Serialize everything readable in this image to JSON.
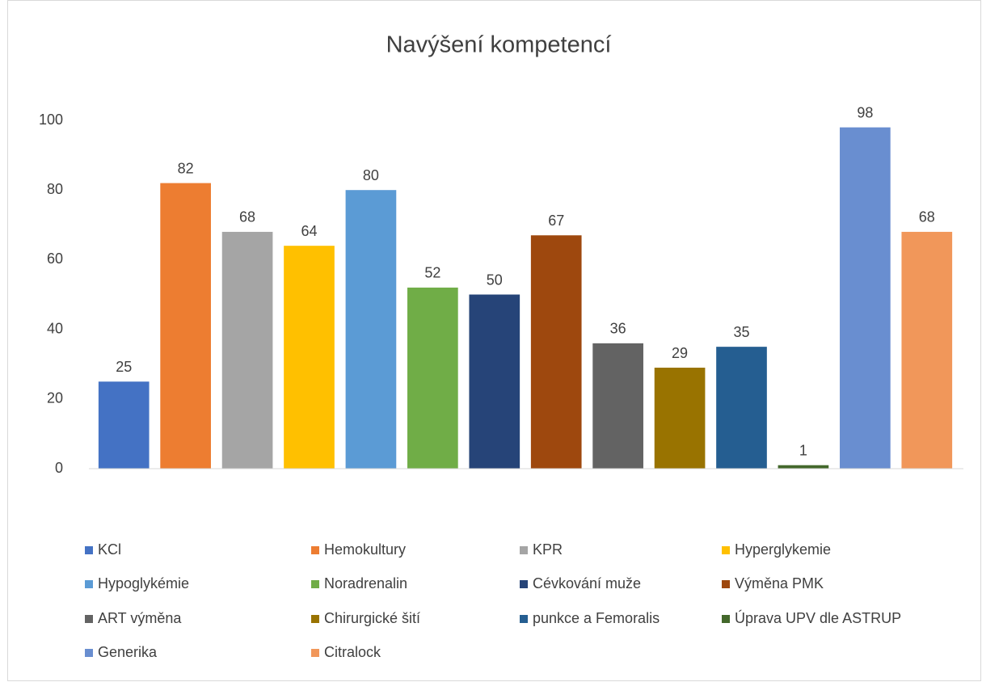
{
  "chart_data": {
    "type": "bar",
    "title": "Navýšení kompetencí",
    "categories": [
      null
    ],
    "series": [
      {
        "name": "KCl",
        "color": "#4472c4",
        "values": [
          25
        ]
      },
      {
        "name": "Hemokultury",
        "color": "#ed7d31",
        "values": [
          82
        ]
      },
      {
        "name": "KPR",
        "color": "#a5a5a5",
        "values": [
          68
        ]
      },
      {
        "name": "Hyperglykemie",
        "color": "#ffc000",
        "values": [
          64
        ]
      },
      {
        "name": "Hypoglykémie",
        "color": "#5b9bd5",
        "values": [
          80
        ]
      },
      {
        "name": "Noradrenalin",
        "color": "#70ad47",
        "values": [
          52
        ]
      },
      {
        "name": "Cévkování muže",
        "color": "#264478",
        "values": [
          50
        ]
      },
      {
        "name": "Výměna PMK",
        "color": "#9e480e",
        "values": [
          67
        ]
      },
      {
        "name": "ART výměna",
        "color": "#636363",
        "values": [
          36
        ]
      },
      {
        "name": "Chirurgické šití",
        "color": "#997300",
        "values": [
          29
        ]
      },
      {
        "name": "punkce a Femoralis",
        "color": "#255e91",
        "values": [
          35
        ]
      },
      {
        "name": "Úprava UPV dle ASTRUP",
        "color": "#43682b",
        "values": [
          1
        ]
      },
      {
        "name": "Generika",
        "color": "#698ed0",
        "values": [
          98
        ]
      },
      {
        "name": "Citralock",
        "color": "#f1975a",
        "values": [
          68
        ]
      }
    ],
    "ylim": [
      0,
      100
    ],
    "yticks": [
      0,
      20,
      40,
      60,
      80,
      100
    ],
    "grid": false,
    "legend": "bottom"
  }
}
